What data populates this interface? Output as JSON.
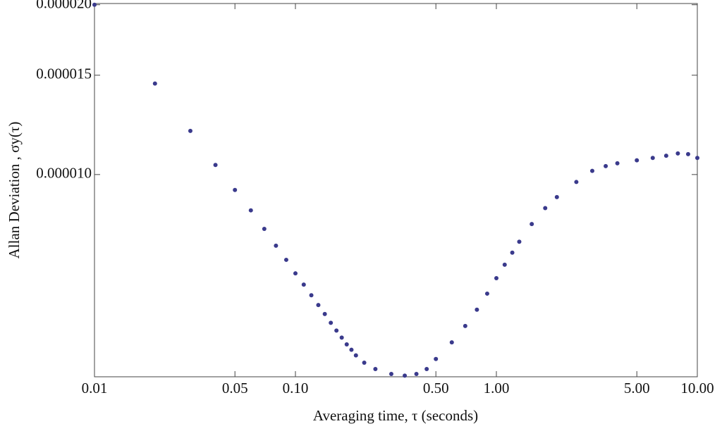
{
  "chart_data": {
    "type": "scatter",
    "xlabel": "Averaging time, τ (seconds)",
    "ylabel": "Allan Deviation , σy(τ)",
    "log_x": true,
    "log_y": true,
    "color": "#3a3a8c",
    "xlim": [
      0.01,
      10
    ],
    "ylim": [
      4.38e-06,
      2.01e-05
    ],
    "xticks": [
      0.01,
      0.05,
      {
        "value": 0.1,
        "label": "0.10"
      },
      {
        "value": 0.5,
        "label": "0.50"
      },
      {
        "value": 1,
        "label": "1.00"
      },
      {
        "value": 5,
        "label": "5.00"
      },
      {
        "value": 10,
        "label": "10.00"
      }
    ],
    "yticks": [
      {
        "value": 1e-05,
        "label": "0.000010"
      },
      {
        "value": 1.5e-05,
        "label": "0.000015"
      },
      {
        "value": 2e-05,
        "label": "0.000020"
      }
    ],
    "x": [
      0.01,
      0.02,
      0.03,
      0.04,
      0.05,
      0.06,
      0.07,
      0.08,
      0.09,
      0.1,
      0.11,
      0.12,
      0.13,
      0.14,
      0.15,
      0.16,
      0.17,
      0.18,
      0.19,
      0.2,
      0.22,
      0.25,
      0.3,
      0.35,
      0.4,
      0.45,
      0.5,
      0.6,
      0.7,
      0.8,
      0.9,
      1.0,
      1.1,
      1.2,
      1.3,
      1.5,
      1.75,
      2,
      2.5,
      3,
      3.5,
      4,
      5,
      6,
      7,
      8,
      9,
      10
    ],
    "values": [
      2e-05,
      1.45e-05,
      1.195e-05,
      1.04e-05,
      9.39e-06,
      8.64e-06,
      8.01e-06,
      7.48e-06,
      7.06e-06,
      6.68e-06,
      6.38e-06,
      6.11e-06,
      5.87e-06,
      5.66e-06,
      5.46e-06,
      5.29e-06,
      5.14e-06,
      5e-06,
      4.89e-06,
      4.78e-06,
      4.64e-06,
      4.52e-06,
      4.43e-06,
      4.4e-06,
      4.43e-06,
      4.52e-06,
      4.71e-06,
      5.04e-06,
      5.39e-06,
      5.76e-06,
      6.15e-06,
      6.55e-06,
      6.92e-06,
      7.27e-06,
      7.6e-06,
      8.17e-06,
      8.72e-06,
      9.12e-06,
      9.7e-06,
      1.015e-05,
      1.035e-05,
      1.047e-05,
      1.06e-05,
      1.07e-05,
      1.08e-05,
      1.09e-05,
      1.087e-05,
      1.07e-05
    ]
  }
}
